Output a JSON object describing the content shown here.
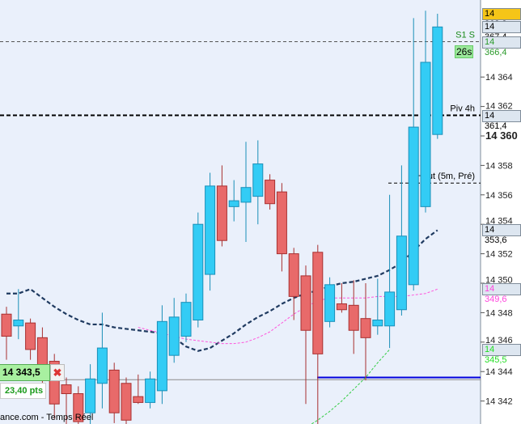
{
  "chart_data": {
    "type": "candlestick",
    "y_range": [
      14340.4,
      14369
    ],
    "y_ticks": [
      14342,
      14344,
      14346,
      14348,
      14350,
      14352,
      14354,
      14356,
      14358,
      14360,
      14362,
      14364
    ],
    "y_tick_labels": [
      "14 342",
      "14 344",
      "14 346",
      "14 348",
      "14 350",
      "14 352",
      "14 354",
      "14 356",
      "14 358",
      "14 360",
      "14 362",
      "14 364"
    ],
    "bold_tick": 14360,
    "candles": [
      [
        14347.9,
        14348.4,
        14344.8,
        14346.4
      ],
      [
        14347.1,
        14349.6,
        14346.2,
        14347.5
      ],
      [
        14347.3,
        14347.6,
        14344.8,
        14345.5
      ],
      [
        14346.3,
        14347.0,
        14342.5,
        14344.0
      ],
      [
        14344.7,
        14345.2,
        14340.8,
        14341.8
      ],
      [
        14343.1,
        14343.6,
        14340.4,
        14342.5
      ],
      [
        14342.5,
        14343.0,
        14340.4,
        14340.6
      ],
      [
        14341.2,
        14344.5,
        14340.4,
        14343.5
      ],
      [
        14343.2,
        14348.0,
        14341.5,
        14345.6
      ],
      [
        14344.1,
        14344.6,
        14340.5,
        14341.2
      ],
      [
        14343.2,
        14343.6,
        14340.4,
        14340.7
      ],
      [
        14342.3,
        14343.8,
        14341.8,
        14341.9
      ],
      [
        14341.9,
        14344.0,
        14341.5,
        14343.5
      ],
      [
        14342.7,
        14348.5,
        14341.8,
        14347.4
      ],
      [
        14345.1,
        14349.0,
        14344.6,
        14347.7
      ],
      [
        14346.4,
        14349.3,
        14346.0,
        14348.7
      ],
      [
        14347.5,
        14354.8,
        14347.0,
        14354.0
      ],
      [
        14350.6,
        14357.5,
        14349.5,
        14356.6
      ],
      [
        14356.6,
        14358.0,
        14352.5,
        14352.9
      ],
      [
        14355.2,
        14357.0,
        14354.2,
        14355.6
      ],
      [
        14355.5,
        14359.6,
        14352.8,
        14356.5
      ],
      [
        14355.9,
        14359.7,
        14354.0,
        14358.1
      ],
      [
        14357.0,
        14357.4,
        14355.0,
        14355.4
      ],
      [
        14356.2,
        14356.8,
        14350.8,
        14352.0
      ],
      [
        14352.0,
        14352.4,
        14347.5,
        14349.1
      ],
      [
        14350.5,
        14351.2,
        14341.8,
        14346.8
      ],
      [
        14352.1,
        14352.6,
        14339.8,
        14345.2
      ],
      [
        14347.4,
        14350.4,
        14347.0,
        14349.9
      ],
      [
        14348.6,
        14350.0,
        14348.0,
        14348.2
      ],
      [
        14348.5,
        14350.2,
        14345.2,
        14346.8
      ],
      [
        14347.6,
        14350.0,
        14343.4,
        14346.3
      ],
      [
        14347.1,
        14350.3,
        14346.5,
        14347.5
      ],
      [
        14347.1,
        14356.0,
        14345.6,
        14349.4
      ],
      [
        14348.2,
        14358.0,
        14347.8,
        14353.2
      ],
      [
        14349.9,
        14368.0,
        14349.5,
        14360.6
      ],
      [
        14355.2,
        14368.5,
        14354.8,
        14365.0
      ],
      [
        14360.1,
        14368.3,
        14359.8,
        14367.4
      ]
    ],
    "moving_averages": [
      {
        "color": "#1f3a60",
        "points": [
          14349.3,
          14349.3,
          14349.6,
          14349.0,
          14348.4,
          14347.9,
          14347.5,
          14347.2,
          14347.2,
          14347.0,
          14346.9,
          14346.8,
          14346.7,
          14346.6,
          14346.3,
          14345.7,
          14345.4,
          14345.6,
          14346.1,
          14346.6,
          14347.2,
          14347.7,
          14348.1,
          14348.6,
          14349.0,
          14349.3,
          14349.5,
          14349.8,
          14350.0,
          14350.1,
          14350.3,
          14350.5,
          14350.9,
          14351.4,
          14352.2,
          14353.0,
          14353.6
        ],
        "start": 0
      },
      {
        "color": "#ff55dd",
        "points": [
          14347.0,
          14346.8,
          14346.6,
          14346.4,
          14346.2,
          14346.1,
          14346.0,
          14345.9,
          14345.9,
          14346.0,
          14346.3,
          14346.7,
          14347.3,
          14347.9,
          14348.4,
          14348.8,
          14349.0,
          14349.0,
          14349.0,
          14349.0,
          14349.1,
          14349.1,
          14349.1,
          14349.2,
          14349.3,
          14349.6
        ],
        "start": 11
      },
      {
        "color": "#33cc44",
        "points": [
          14339.8,
          14340.2,
          14340.7,
          14341.3,
          14342.0,
          14342.8,
          14343.6,
          14344.6,
          14345.5
        ],
        "start": 24
      }
    ],
    "levels": [
      {
        "label": "S1 S",
        "price": 14366.4,
        "color": "#555555",
        "text_color": "#1a8a1a"
      },
      {
        "label": "Piv 4h",
        "price": 14361.4,
        "color": "#000000",
        "text_color": "#000000"
      },
      {
        "label": "Haut (5m, Pré)",
        "price": 14356.8,
        "color": "#000000",
        "text_color": "#000000"
      }
    ],
    "blue_line_price": 14343.6,
    "grey_line_price": 14343.5
  },
  "axis_tags": [
    {
      "text": "14 368,3",
      "bg": "#f5c518",
      "fg": "#000000",
      "price": 14368.3
    },
    {
      "text": "14 367,4",
      "bg": "#dde6f0",
      "fg": "#000000",
      "price": 14367.4
    },
    {
      "text": "14 366,4",
      "bg": "#dde6f0",
      "fg": "#2a9a2a",
      "price": 14366.4
    },
    {
      "text": "14 361,4",
      "bg": "#dde6f0",
      "fg": "#000000",
      "price": 14361.4
    },
    {
      "text": "14 353,6",
      "bg": "#dde6f0",
      "fg": "#000000",
      "price": 14353.6
    },
    {
      "text": "14 349,6",
      "bg": "#dde6f0",
      "fg": "#ff44dd",
      "price": 14349.6
    },
    {
      "text": "14 345,5",
      "bg": "#dde6f0",
      "fg": "#22dd22",
      "price": 14345.5
    }
  ],
  "timer": "26s",
  "order": {
    "price": "14 343,5",
    "distance": "23,40 pts"
  },
  "footer": "ance.com - Temps Réel",
  "colors": {
    "up": "#33ccf5",
    "down": "#e86a6a",
    "background": "#eaf0fb"
  }
}
